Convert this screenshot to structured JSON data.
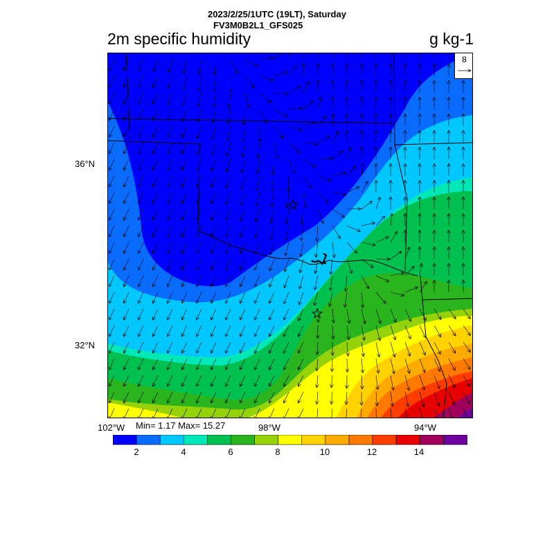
{
  "header": {
    "run_time": "2023/2/25/1UTC (19LT), Saturday",
    "model": "FV3M0B2L1_GFS025",
    "field": "2m specific humidity",
    "units": "g kg-1"
  },
  "map": {
    "lat_labels": [
      "36°N",
      "32°N"
    ],
    "lon_labels": [
      "102°W",
      "98°W",
      "94°W"
    ],
    "stats": "Min= 1.17 Max= 15.27",
    "vector_reference": "8",
    "station_markers": [
      "star",
      "star"
    ]
  },
  "colorbar": {
    "colors": [
      "#0000ff",
      "#0a6cff",
      "#00c8ff",
      "#00e8b8",
      "#00c050",
      "#2ab41e",
      "#96d20a",
      "#ffff00",
      "#ffd200",
      "#ffaa00",
      "#ff7800",
      "#ff3c00",
      "#e60000",
      "#a0005a",
      "#6e009b"
    ],
    "labels": [
      "2",
      "4",
      "6",
      "8",
      "10",
      "12",
      "14"
    ]
  },
  "icons": {
    "wind_vectors": "wind-vector-arrow-icon",
    "stations": "star-icon"
  }
}
